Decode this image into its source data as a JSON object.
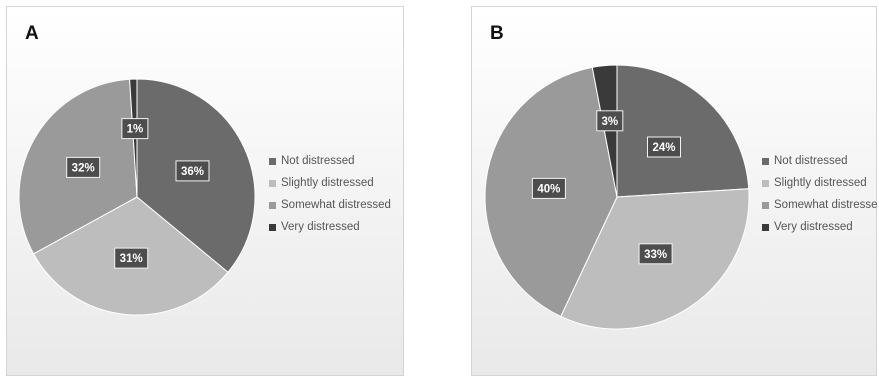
{
  "chart_data": [
    {
      "type": "pie",
      "panel_label": "A",
      "categories": [
        "Not distressed",
        "Slightly distressed",
        "Somewhat distressed",
        "Very distressed"
      ],
      "values": [
        36,
        31,
        32,
        1
      ],
      "labels": [
        "36%",
        "31%",
        "32%",
        "1%"
      ],
      "colors": [
        "#6b6b6b",
        "#bdbdbd",
        "#9a9a9a",
        "#3a3a3a"
      ],
      "legend": "right"
    },
    {
      "type": "pie",
      "panel_label": "B",
      "categories": [
        "Not distressed",
        "Slightly distressed",
        "Somewhat distressed",
        "Very distressed"
      ],
      "values": [
        24,
        33,
        40,
        3
      ],
      "labels": [
        "24%",
        "33%",
        "40%",
        "3%"
      ],
      "colors": [
        "#6b6b6b",
        "#bdbdbd",
        "#9a9a9a",
        "#3a3a3a"
      ],
      "legend": "right"
    }
  ]
}
